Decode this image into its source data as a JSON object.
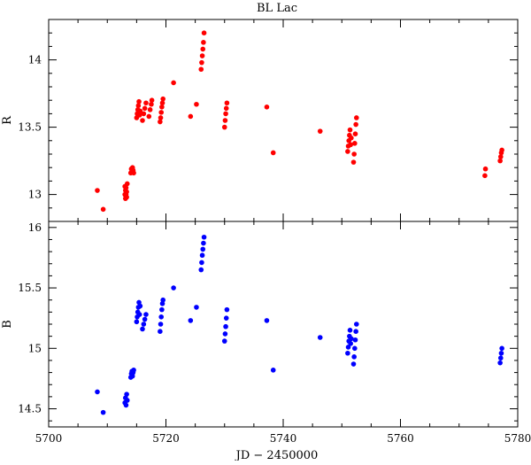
{
  "chart_data": {
    "type": "scatter",
    "title": "BL Lac",
    "xlabel": "JD − 2450000",
    "xlim": [
      5700,
      5780
    ],
    "x_ticks": [
      5700,
      5720,
      5740,
      5760,
      5780
    ],
    "grid": false,
    "panels": [
      {
        "ylabel": "R",
        "ylim": [
          14.3,
          12.8
        ],
        "y_ticks": [
          13,
          13.5,
          14
        ],
        "inverted_y": true,
        "color": "#ff0000",
        "series": [
          {
            "x": [
              5708.3,
              5709.3,
              5713.0,
              5713.0,
              5713.1,
              5713.1,
              5713.2,
              5713.2,
              5713.3,
              5713.3,
              5713.4,
              5714.0,
              5714.1,
              5714.2,
              5714.3,
              5714.4,
              5714.5,
              5715.0,
              5715.1,
              5715.2,
              5715.3,
              5715.4,
              5715.5,
              5715.6,
              5716.0,
              5716.2,
              5716.4,
              5716.6,
              5717.1,
              5717.3,
              5717.5,
              5717.6,
              5719.0,
              5719.1,
              5719.2,
              5719.3,
              5719.4,
              5719.5,
              5721.3,
              5724.2,
              5725.2,
              5726.0,
              5726.1,
              5726.2,
              5726.3,
              5726.4,
              5726.5,
              5730.0,
              5730.1,
              5730.2,
              5730.3,
              5730.4,
              5737.2,
              5738.3,
              5746.3,
              5751.0,
              5751.1,
              5751.2,
              5751.3,
              5751.4,
              5751.5,
              5751.6,
              5752.0,
              5752.1,
              5752.2,
              5752.3,
              5752.4,
              5752.5,
              5774.4,
              5774.5,
              5777.0,
              5777.1,
              5777.2,
              5777.3
            ],
            "y": [
              13.03,
              12.89,
              13.0,
              13.06,
              12.97,
              13.03,
              13.0,
              13.05,
              12.98,
              13.02,
              13.08,
              13.16,
              13.19,
              13.17,
              13.2,
              13.18,
              13.16,
              13.57,
              13.6,
              13.63,
              13.66,
              13.69,
              13.59,
              13.62,
              13.55,
              13.6,
              13.64,
              13.68,
              13.58,
              13.63,
              13.67,
              13.7,
              13.54,
              13.57,
              13.61,
              13.65,
              13.68,
              13.71,
              13.83,
              13.58,
              13.67,
              13.93,
              13.98,
              14.03,
              14.08,
              14.13,
              14.2,
              13.5,
              13.55,
              13.6,
              13.64,
              13.68,
              13.65,
              13.31,
              13.47,
              13.32,
              13.36,
              13.4,
              13.44,
              13.48,
              13.37,
              13.42,
              13.24,
              13.3,
              13.38,
              13.45,
              13.52,
              13.57,
              13.14,
              13.19,
              13.25,
              13.28,
              13.31,
              13.33
            ]
          }
        ]
      },
      {
        "ylabel": "B",
        "ylim": [
          16.05,
          14.35
        ],
        "y_ticks": [
          14.5,
          15,
          15.5,
          16
        ],
        "inverted_y": true,
        "color": "#0000ff",
        "series": [
          {
            "x": [
              5708.3,
              5709.3,
              5713.0,
              5713.1,
              5713.2,
              5713.3,
              5713.4,
              5714.0,
              5714.1,
              5714.2,
              5714.3,
              5714.4,
              5714.5,
              5715.0,
              5715.1,
              5715.2,
              5715.3,
              5715.4,
              5715.5,
              5715.6,
              5716.0,
              5716.2,
              5716.4,
              5716.6,
              5719.0,
              5719.1,
              5719.2,
              5719.3,
              5719.4,
              5719.5,
              5721.3,
              5724.2,
              5725.2,
              5726.0,
              5726.1,
              5726.2,
              5726.3,
              5726.4,
              5726.5,
              5730.0,
              5730.1,
              5730.2,
              5730.3,
              5730.4,
              5737.2,
              5738.3,
              5746.3,
              5751.0,
              5751.1,
              5751.2,
              5751.3,
              5751.4,
              5751.5,
              5751.6,
              5752.0,
              5752.1,
              5752.2,
              5752.3,
              5752.4,
              5752.5,
              5777.0,
              5777.1,
              5777.2,
              5777.3
            ],
            "y": [
              14.64,
              14.47,
              14.55,
              14.59,
              14.53,
              14.62,
              14.57,
              14.76,
              14.79,
              14.81,
              14.77,
              14.8,
              14.82,
              15.22,
              15.26,
              15.3,
              15.34,
              15.38,
              15.28,
              15.35,
              15.16,
              15.2,
              15.24,
              15.28,
              15.14,
              15.2,
              15.26,
              15.32,
              15.37,
              15.4,
              15.5,
              15.23,
              15.34,
              15.65,
              15.71,
              15.77,
              15.82,
              15.87,
              15.92,
              15.06,
              15.12,
              15.18,
              15.25,
              15.32,
              15.23,
              14.82,
              15.09,
              14.96,
              15.01,
              15.06,
              15.1,
              15.15,
              15.04,
              15.08,
              14.87,
              14.93,
              15.0,
              15.07,
              15.14,
              15.2,
              14.88,
              14.92,
              14.96,
              15.0
            ]
          }
        ]
      }
    ]
  }
}
